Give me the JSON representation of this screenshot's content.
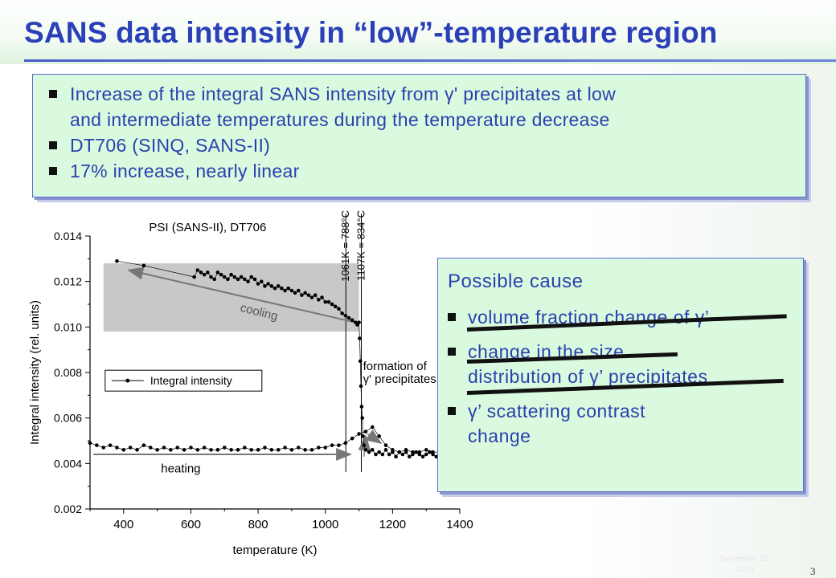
{
  "slide": {
    "title": "SANS data intensity in “low”-temperature region",
    "page_number": "3",
    "date_line1": "November 29,",
    "date_line2": "2015"
  },
  "top_box": {
    "bullets": [
      {
        "line1": "Increase of the integral SANS intensity from γ' precipitates at low",
        "line2": "and intermediate temperatures during the temperature decrease"
      },
      {
        "line1": "DT706 (SINQ, SANS-II)",
        "line2": ""
      },
      {
        "line1": "17% increase, nearly linear",
        "line2": ""
      }
    ]
  },
  "cause_box": {
    "title": "Possible cause",
    "bullets": [
      {
        "line1": "volume fraction change of γ’",
        "line2": "",
        "struck": true
      },
      {
        "line1": "change in the size",
        "line2": "distribution of γ’ precipitates",
        "struck": true
      },
      {
        "line1": "γ’ scattering contrast",
        "line2": "change",
        "struck": false
      }
    ]
  },
  "chart_data": {
    "type": "scatter",
    "title": "PSI (SANS-II), DT706",
    "xlabel": "temperature (K)",
    "ylabel": "Integral intensity (rel. units)",
    "xlim": [
      300,
      1400
    ],
    "ylim": [
      0.002,
      0.014
    ],
    "xticks": [
      "400",
      "600",
      "800",
      "1000",
      "1200",
      "1400"
    ],
    "yticks": [
      "0.002",
      "0.004",
      "0.006",
      "0.008",
      "0.010",
      "0.012",
      "0.014"
    ],
    "legend": "Integral intensity",
    "legend_placement": "middle-left",
    "vlines": [
      {
        "x": 1061,
        "label": "1061K = 788°C"
      },
      {
        "x": 1107,
        "label": "1107K = 834°C"
      }
    ],
    "annotations": {
      "cooling": "cooling",
      "heating": "heating",
      "formation_line1": "formation of",
      "formation_line2": "γ' precipitates"
    },
    "cooling_region": {
      "x": [
        340,
        1100
      ],
      "y": [
        0.0098,
        0.0128
      ]
    },
    "series": [
      {
        "name": "cooling",
        "x": [
          380,
          460,
          610,
          620,
          630,
          640,
          650,
          660,
          670,
          680,
          690,
          700,
          710,
          720,
          730,
          740,
          750,
          760,
          770,
          780,
          790,
          800,
          810,
          820,
          830,
          840,
          850,
          860,
          870,
          880,
          890,
          900,
          910,
          920,
          930,
          940,
          950,
          960,
          970,
          980,
          990,
          1000,
          1010,
          1020,
          1030,
          1040,
          1050,
          1060,
          1070,
          1080,
          1090,
          1095,
          1100,
          1102,
          1104,
          1106,
          1108,
          1110,
          1112,
          1115,
          1120,
          1130,
          1140,
          1150,
          1160,
          1170,
          1180,
          1190,
          1200,
          1210,
          1220,
          1230,
          1240,
          1250,
          1260,
          1270,
          1280,
          1290,
          1300,
          1310,
          1320,
          1330,
          1340,
          1350
        ],
        "y": [
          0.0129,
          0.0127,
          0.0122,
          0.0125,
          0.0124,
          0.0123,
          0.0124,
          0.0122,
          0.0121,
          0.0124,
          0.0123,
          0.0122,
          0.0121,
          0.0123,
          0.0122,
          0.0121,
          0.0122,
          0.0121,
          0.012,
          0.0122,
          0.0121,
          0.0119,
          0.012,
          0.0118,
          0.0119,
          0.0118,
          0.0117,
          0.0118,
          0.0117,
          0.0116,
          0.0117,
          0.0116,
          0.0115,
          0.0116,
          0.0114,
          0.0115,
          0.0114,
          0.0113,
          0.0114,
          0.0112,
          0.0113,
          0.0111,
          0.0111,
          0.011,
          0.0109,
          0.0108,
          0.0106,
          0.0105,
          0.0104,
          0.0103,
          0.0102,
          0.0101,
          0.0102,
          0.0095,
          0.0085,
          0.0074,
          0.0065,
          0.006,
          0.0052,
          0.0048,
          0.0046,
          0.0045,
          0.0046,
          0.0044,
          0.0045,
          0.0044,
          0.0046,
          0.0044,
          0.0045,
          0.0043,
          0.0045,
          0.0044,
          0.0045,
          0.0043,
          0.0044,
          0.0045,
          0.0044,
          0.0043,
          0.0044,
          0.0045,
          0.0044,
          0.0043,
          0.0044,
          0.0045
        ]
      },
      {
        "name": "heating",
        "x": [
          300,
          320,
          340,
          360,
          380,
          400,
          420,
          440,
          460,
          480,
          500,
          520,
          540,
          560,
          580,
          600,
          620,
          640,
          660,
          680,
          700,
          720,
          740,
          760,
          780,
          800,
          820,
          840,
          860,
          880,
          900,
          920,
          940,
          960,
          980,
          1000,
          1020,
          1040,
          1060,
          1080,
          1100,
          1120,
          1140,
          1160,
          1180,
          1200,
          1220,
          1240,
          1260,
          1280,
          1300,
          1320,
          1340
        ],
        "y": [
          0.0049,
          0.0048,
          0.0047,
          0.0048,
          0.0047,
          0.0046,
          0.0047,
          0.0046,
          0.0048,
          0.0047,
          0.0046,
          0.0047,
          0.0046,
          0.0047,
          0.0046,
          0.0047,
          0.0046,
          0.0047,
          0.0046,
          0.0046,
          0.0047,
          0.0046,
          0.0046,
          0.0047,
          0.0046,
          0.0046,
          0.0047,
          0.0046,
          0.0046,
          0.0047,
          0.0046,
          0.0047,
          0.0046,
          0.0046,
          0.0047,
          0.0047,
          0.0048,
          0.0048,
          0.0049,
          0.0051,
          0.0053,
          0.0054,
          0.0056,
          0.0052,
          0.0048,
          0.0046,
          0.0045,
          0.0046,
          0.0045,
          0.0045,
          0.0046,
          0.0045,
          0.0045
        ]
      }
    ]
  }
}
